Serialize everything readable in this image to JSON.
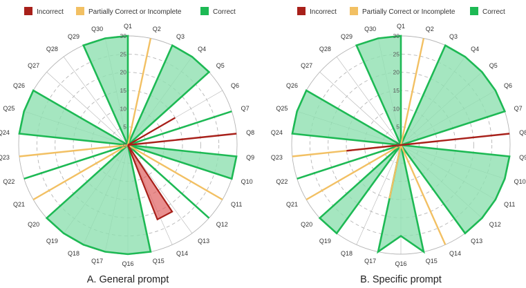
{
  "colors": {
    "incorrect": "#a8201a",
    "partial": "#f2c063",
    "correct": "#1db954",
    "correct_fill": "#8fe0b0",
    "grid": "#b5b5b5"
  },
  "legend": {
    "incorrect": "Incorrect",
    "partial": "Partially Correct or Incomplete",
    "correct": "Correct"
  },
  "chart_data": [
    {
      "type": "radar",
      "title": "A. General prompt",
      "categories": [
        "Q1",
        "Q2",
        "Q3",
        "Q4",
        "Q5",
        "Q6",
        "Q7",
        "Q8",
        "Q9",
        "Q10",
        "Q11",
        "Q12",
        "Q13",
        "Q14",
        "Q15",
        "Q16",
        "Q17",
        "Q18",
        "Q19",
        "Q20",
        "Q21",
        "Q22",
        "Q23",
        "Q24",
        "Q25",
        "Q26",
        "Q27",
        "Q28",
        "Q29",
        "Q30"
      ],
      "rlim": [
        0,
        30
      ],
      "rticks": [
        0,
        5,
        10,
        15,
        20,
        25,
        30
      ],
      "series": [
        {
          "name": "Incorrect",
          "values": [
            0,
            0,
            0,
            0,
            0,
            15,
            0,
            30,
            0,
            0,
            0,
            0,
            0,
            0,
            0,
            0,
            0,
            0,
            0,
            0,
            0,
            0,
            0,
            0,
            0,
            0,
            0,
            0,
            0,
            0
          ],
          "wedge": [
            {
              "q": "Q14",
              "value": 22,
              "width": 0.5
            }
          ]
        },
        {
          "name": "Partially Correct or Incomplete",
          "values": [
            0,
            30,
            0,
            0,
            0,
            0,
            0,
            0,
            0,
            0,
            30,
            0,
            0,
            0,
            0,
            0,
            0,
            0,
            0,
            0,
            30,
            0,
            30,
            0,
            0,
            0,
            0,
            0,
            0,
            0
          ]
        },
        {
          "name": "Correct",
          "values": [
            30,
            0,
            30,
            30,
            30,
            0,
            30,
            0,
            30,
            30,
            0,
            30,
            0,
            0,
            30,
            30,
            30,
            30,
            30,
            30,
            0,
            30,
            0,
            30,
            30,
            30,
            0,
            0,
            30,
            30
          ]
        }
      ]
    },
    {
      "type": "radar",
      "title": "B. Specific prompt",
      "categories": [
        "Q1",
        "Q2",
        "Q3",
        "Q4",
        "Q5",
        "Q6",
        "Q7",
        "Q8",
        "Q9",
        "Q10",
        "Q11",
        "Q12",
        "Q13",
        "Q14",
        "Q15",
        "Q16",
        "Q17",
        "Q18",
        "Q19",
        "Q20",
        "Q21",
        "Q22",
        "Q23",
        "Q24",
        "Q25",
        "Q26",
        "Q27",
        "Q28",
        "Q29",
        "Q30"
      ],
      "rlim": [
        0,
        30
      ],
      "rticks": [
        0,
        5,
        10,
        15,
        20,
        25,
        30
      ],
      "series": [
        {
          "name": "Incorrect",
          "values": [
            0,
            0,
            0,
            0,
            0,
            0,
            0,
            30,
            0,
            0,
            0,
            0,
            0,
            0,
            0,
            0,
            0,
            0,
            0,
            0,
            0,
            0,
            15,
            0,
            0,
            0,
            0,
            0,
            0,
            0
          ]
        },
        {
          "name": "Partially Correct or Incomplete",
          "values": [
            0,
            30,
            0,
            0,
            0,
            0,
            0,
            0,
            0,
            0,
            0,
            0,
            0,
            30,
            0,
            0,
            15,
            0,
            0,
            0,
            30,
            0,
            30,
            0,
            0,
            0,
            0,
            0,
            0,
            0
          ]
        },
        {
          "name": "Correct",
          "values": [
            30,
            0,
            30,
            30,
            30,
            30,
            30,
            0,
            30,
            30,
            30,
            30,
            30,
            0,
            30,
            0,
            30,
            0,
            30,
            30,
            0,
            30,
            0,
            30,
            30,
            30,
            0,
            0,
            30,
            30
          ],
          "notches": [
            {
              "q": "Q16",
              "value": 25
            }
          ]
        }
      ]
    }
  ]
}
